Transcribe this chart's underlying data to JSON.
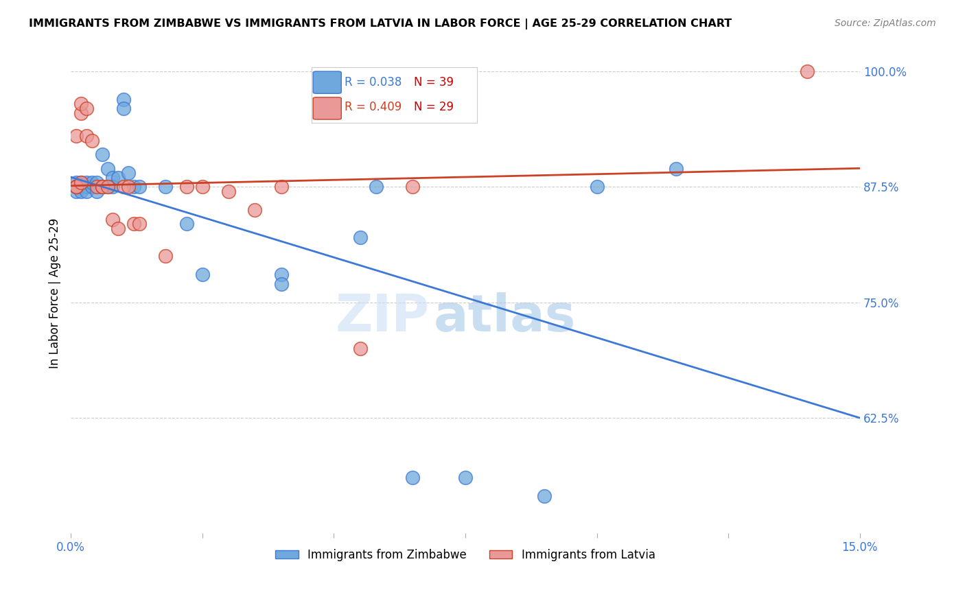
{
  "title": "IMMIGRANTS FROM ZIMBABWE VS IMMIGRANTS FROM LATVIA IN LABOR FORCE | AGE 25-29 CORRELATION CHART",
  "source": "Source: ZipAtlas.com",
  "ylabel": "In Labor Force | Age 25-29",
  "xlim": [
    0.0,
    0.15
  ],
  "ylim": [
    0.5,
    1.02
  ],
  "color_zimbabwe": "#6fa8dc",
  "color_latvia": "#ea9999",
  "color_line_zimbabwe": "#3c78d8",
  "color_line_latvia": "#cc4125",
  "background": "#ffffff",
  "watermark_zip": "ZIP",
  "watermark_atlas": "atlas",
  "zimbabwe_x": [
    0.001,
    0.001,
    0.001,
    0.001,
    0.002,
    0.002,
    0.002,
    0.002,
    0.003,
    0.003,
    0.003,
    0.004,
    0.004,
    0.005,
    0.005,
    0.006,
    0.006,
    0.007,
    0.007,
    0.008,
    0.008,
    0.009,
    0.01,
    0.01,
    0.011,
    0.012,
    0.013,
    0.018,
    0.022,
    0.025,
    0.04,
    0.04,
    0.055,
    0.058,
    0.065,
    0.075,
    0.09,
    0.1,
    0.115
  ],
  "zimbabwe_y": [
    0.875,
    0.875,
    0.88,
    0.87,
    0.875,
    0.88,
    0.875,
    0.87,
    0.875,
    0.88,
    0.87,
    0.875,
    0.88,
    0.88,
    0.87,
    0.91,
    0.875,
    0.895,
    0.875,
    0.885,
    0.875,
    0.885,
    0.97,
    0.96,
    0.89,
    0.875,
    0.875,
    0.875,
    0.835,
    0.78,
    0.78,
    0.77,
    0.82,
    0.875,
    0.56,
    0.56,
    0.54,
    0.875,
    0.895
  ],
  "latvia_x": [
    0.001,
    0.001,
    0.001,
    0.001,
    0.002,
    0.002,
    0.002,
    0.003,
    0.003,
    0.004,
    0.005,
    0.006,
    0.006,
    0.007,
    0.008,
    0.009,
    0.01,
    0.011,
    0.012,
    0.013,
    0.018,
    0.022,
    0.025,
    0.03,
    0.035,
    0.04,
    0.055,
    0.065,
    0.14
  ],
  "latvia_y": [
    0.875,
    0.875,
    0.875,
    0.93,
    0.955,
    0.965,
    0.88,
    0.96,
    0.93,
    0.925,
    0.875,
    0.875,
    0.875,
    0.875,
    0.84,
    0.83,
    0.875,
    0.875,
    0.835,
    0.835,
    0.8,
    0.875,
    0.875,
    0.87,
    0.85,
    0.875,
    0.7,
    0.875,
    1.0
  ]
}
